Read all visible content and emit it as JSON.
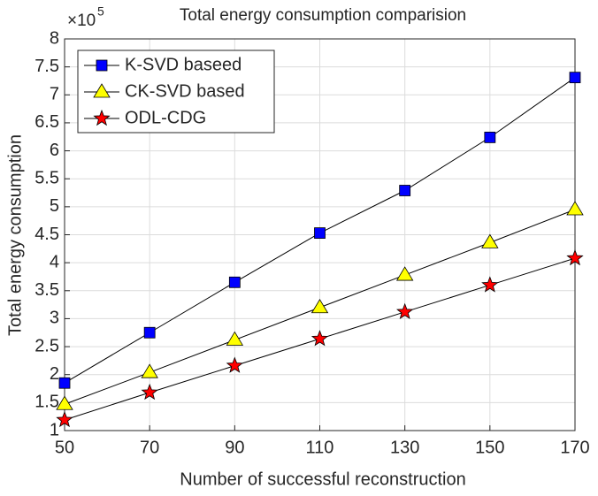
{
  "chart_data": {
    "type": "line",
    "title": "Total energy consumption comparision",
    "x_label": "Number of successful reconstruction",
    "y_label": "Total energy consumption",
    "y_multiplier": {
      "base": "×10",
      "exponent": "5"
    },
    "x": [
      50,
      70,
      90,
      110,
      130,
      150,
      170
    ],
    "series": [
      {
        "name": "K-SVD baseed",
        "color": "#0000ff",
        "marker": "square",
        "values": [
          1.85,
          2.75,
          3.65,
          4.53,
          5.29,
          6.24,
          7.31
        ]
      },
      {
        "name": "CK-SVD based",
        "color": "#ffff00",
        "marker": "triangle",
        "values": [
          1.47,
          2.04,
          2.62,
          3.2,
          3.78,
          4.36,
          4.95
        ]
      },
      {
        "name": "ODL-CDG",
        "color": "#ff0000",
        "marker": "star",
        "values": [
          1.19,
          1.68,
          2.16,
          2.64,
          3.12,
          3.6,
          4.08
        ]
      }
    ],
    "line_color": "#000000",
    "xlim": [
      50,
      170
    ],
    "xticks": [
      50,
      70,
      90,
      110,
      130,
      150,
      170
    ],
    "ylim": [
      1,
      8
    ],
    "yticks": [
      1,
      1.5,
      2,
      2.5,
      3,
      3.5,
      4,
      4.5,
      5,
      5.5,
      6,
      6.5,
      7,
      7.5,
      8
    ],
    "grid": true,
    "legend": "upper left"
  }
}
